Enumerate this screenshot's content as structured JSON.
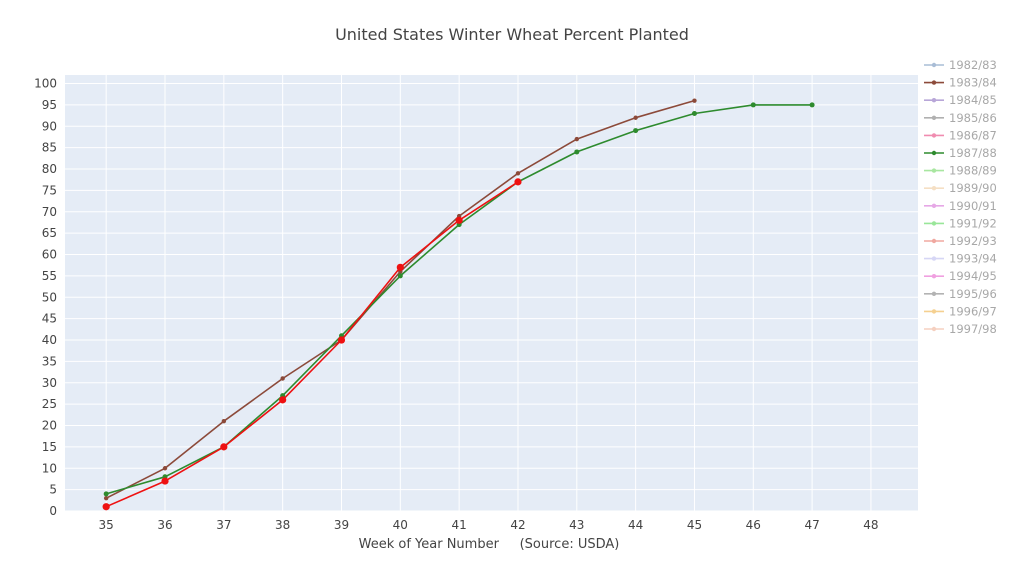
{
  "chart_data": {
    "type": "line",
    "title": "United States Winter Wheat Percent Planted",
    "xlabel": "Week of Year Number     (Source: USDA)",
    "ylabel": "",
    "xlim": [
      34.3,
      48.8
    ],
    "ylim": [
      0,
      102
    ],
    "xticks": [
      35,
      36,
      37,
      38,
      39,
      40,
      41,
      42,
      43,
      44,
      45,
      46,
      47,
      48
    ],
    "yticks": [
      0,
      5,
      10,
      15,
      20,
      25,
      30,
      35,
      40,
      45,
      50,
      55,
      60,
      65,
      70,
      75,
      80,
      85,
      90,
      95,
      100
    ],
    "grid": true,
    "legend_position": "right",
    "series": [
      {
        "name": "1982/83",
        "color": "#a9bdd6",
        "visible": false,
        "x": [],
        "y": []
      },
      {
        "name": "1983/84",
        "color": "#8c4a3a",
        "visible": true,
        "marker_size": 2.2,
        "x": [
          35,
          36,
          37,
          38,
          39,
          40,
          41,
          42,
          43,
          44,
          45
        ],
        "y": [
          3,
          10,
          21,
          31,
          40,
          56,
          69,
          79,
          87,
          92,
          96
        ]
      },
      {
        "name": "1984/85",
        "color": "#b8a6d8",
        "visible": false,
        "x": [],
        "y": []
      },
      {
        "name": "1985/86",
        "color": "#b0b0b0",
        "visible": false,
        "x": [],
        "y": []
      },
      {
        "name": "1986/87",
        "color": "#f08cb0",
        "visible": false,
        "x": [],
        "y": []
      },
      {
        "name": "1987/88",
        "color": "#2e8b2e",
        "visible": true,
        "marker_size": 2.5,
        "x": [
          35,
          36,
          37,
          38,
          39,
          40,
          41,
          42,
          43,
          44,
          45,
          46,
          47
        ],
        "y": [
          4,
          8,
          15,
          27,
          41,
          55,
          67,
          77,
          84,
          89,
          93,
          95,
          95
        ]
      },
      {
        "name": "1988/89",
        "color": "#a8e6a0",
        "visible": false,
        "x": [],
        "y": []
      },
      {
        "name": "1989/90",
        "color": "#f5dfc4",
        "visible": false,
        "x": [],
        "y": []
      },
      {
        "name": "1990/91",
        "color": "#e6a8e6",
        "visible": false,
        "x": [],
        "y": []
      },
      {
        "name": "1991/92",
        "color": "#99e699",
        "visible": false,
        "x": [],
        "y": []
      },
      {
        "name": "1992/93",
        "color": "#f0a8a0",
        "visible": false,
        "x": [],
        "y": []
      },
      {
        "name": "1993/94",
        "color": "#d6d6f5",
        "visible": false,
        "x": [],
        "y": []
      },
      {
        "name": "1994/95",
        "color": "#f0a0e0",
        "visible": false,
        "x": [],
        "y": []
      },
      {
        "name": "1995/96",
        "color": "#b3b3b3",
        "visible": false,
        "x": [],
        "y": []
      },
      {
        "name": "1996/97",
        "color": "#f5d090",
        "visible": false,
        "x": [],
        "y": []
      },
      {
        "name": "1997/98",
        "color": "#f5d0c0",
        "visible": false,
        "x": [],
        "y": []
      },
      {
        "name": "",
        "color": "#ee1111",
        "visible": true,
        "show_in_legend": false,
        "marker_size": 3.6,
        "x": [
          35,
          36,
          37,
          38,
          39,
          40,
          41,
          42
        ],
        "y": [
          1,
          7,
          15,
          26,
          40,
          57,
          68,
          77
        ]
      }
    ]
  }
}
